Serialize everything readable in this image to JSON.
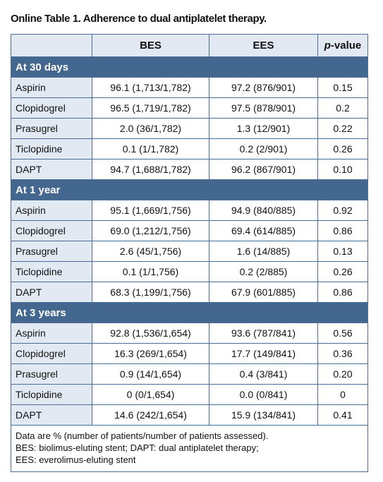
{
  "title": "Online Table 1. Adherence to dual antiplatelet therapy.",
  "table": {
    "header": {
      "bes": "BES",
      "ees": "EES",
      "p_italic": "p",
      "p_rest": "-value"
    },
    "sections": [
      {
        "title": "At 30 days",
        "rows": [
          [
            "Aspirin",
            "96.1 (1,713/1,782)",
            "97.2 (876/901)",
            "0.15"
          ],
          [
            "Clopidogrel",
            "96.5 (1,719/1,782)",
            "97.5 (878/901)",
            "0.2"
          ],
          [
            "Prasugrel",
            "2.0 (36/1,782)",
            "1.3 (12/901)",
            "0.22"
          ],
          [
            "Ticlopidine",
            "0.1 (1/1,782)",
            "0.2 (2/901)",
            "0.26"
          ],
          [
            "DAPT",
            "94.7 (1,688/1,782)",
            "96.2 (867/901)",
            "0.10"
          ]
        ]
      },
      {
        "title": "At 1 year",
        "rows": [
          [
            "Aspirin",
            "95.1 (1,669/1,756)",
            "94.9 (840/885)",
            "0.92"
          ],
          [
            "Clopidogrel",
            "69.0 (1,212/1,756)",
            "69.4 (614/885)",
            "0.86"
          ],
          [
            "Prasugrel",
            "2.6 (45/1,756)",
            "1.6 (14/885)",
            "0.13"
          ],
          [
            "Ticlopidine",
            "0.1 (1/1,756)",
            "0.2 (2/885)",
            "0.26"
          ],
          [
            "DAPT",
            "68.3 (1,199/1,756)",
            "67.9 (601/885)",
            "0.86"
          ]
        ]
      },
      {
        "title": "At 3 years",
        "rows": [
          [
            "Aspirin",
            "92.8 (1,536/1,654)",
            "93.6 (787/841)",
            "0.56"
          ],
          [
            "Clopidogrel",
            "16.3 (269/1,654)",
            "17.7 (149/841)",
            "0.36"
          ],
          [
            "Prasugrel",
            "0.9 (14/1,654)",
            "0.4 (3/841)",
            "0.20"
          ],
          [
            "Ticlopidine",
            "0 (0/1,654)",
            "0.0 (0/841)",
            "0"
          ],
          [
            "DAPT",
            "14.6 (242/1,654)",
            "15.9 (134/841)",
            "0.41"
          ]
        ]
      }
    ],
    "notes": [
      "Data are % (number of patients/number of patients assessed).",
      "BES: biolimus-eluting stent; DAPT: dual antiplatelet therapy;",
      "EES: everolimus-eluting stent"
    ]
  }
}
